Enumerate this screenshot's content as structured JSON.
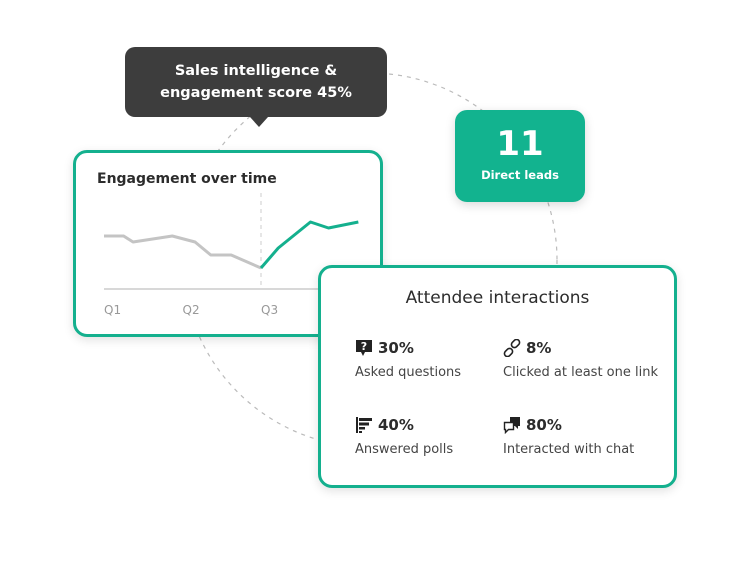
{
  "tooltip": {
    "text": "Sales intelligence & engagement score 45%"
  },
  "leads": {
    "value": "11",
    "label": "Direct leads"
  },
  "engagement": {
    "title": "Engagement over time"
  },
  "chart_data": {
    "type": "line",
    "title": "Engagement over time",
    "x_ticks": [
      "Q1",
      "Q2",
      "Q3"
    ],
    "series": [
      {
        "color": "#c4c4c4",
        "x": [
          1,
          1.25,
          1.37,
          1.87,
          2.16,
          2.36,
          2.62,
          3
        ],
        "y": [
          53,
          53,
          47,
          53,
          47,
          34,
          34,
          21
        ]
      },
      {
        "color": "#14b08e",
        "x": [
          3,
          3.22,
          3.63,
          3.86,
          4.24
        ],
        "y": [
          21,
          41,
          67,
          61,
          67
        ]
      }
    ],
    "marker_x": 3,
    "grid": false
  },
  "attendee": {
    "title": "Attendee interactions",
    "stats": [
      {
        "icon": "question-bubble-icon",
        "value": "30%",
        "label": "Asked questions"
      },
      {
        "icon": "link-icon",
        "value": "8%",
        "label": "Clicked at least one link"
      },
      {
        "icon": "poll-icon",
        "value": "40%",
        "label": "Answered polls"
      },
      {
        "icon": "chat-icon",
        "value": "80%",
        "label": "Interacted with chat"
      }
    ]
  },
  "colors": {
    "accent": "#14b08e",
    "tooltip": "#3d3d3d"
  }
}
